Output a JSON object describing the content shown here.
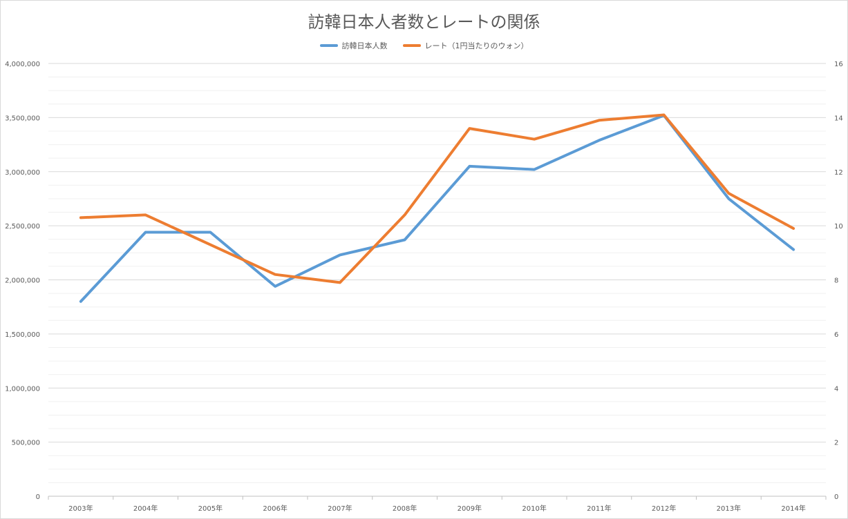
{
  "chart_data": {
    "type": "line",
    "title": "訪韓日本人者数とレートの関係",
    "categories": [
      "2003年",
      "2004年",
      "2005年",
      "2006年",
      "2007年",
      "2008年",
      "2009年",
      "2010年",
      "2011年",
      "2012年",
      "2013年",
      "2014年"
    ],
    "series": [
      {
        "name": "訪韓日本人数",
        "axis": "left",
        "color": "#5b9bd5",
        "values": [
          1800000,
          2440000,
          2440000,
          1940000,
          2230000,
          2370000,
          3050000,
          3020000,
          3290000,
          3520000,
          2750000,
          2280000
        ]
      },
      {
        "name": "レート（1円当たりのウォン）",
        "axis": "right",
        "color": "#ed7d31",
        "values": [
          10.3,
          10.4,
          9.3,
          8.2,
          7.9,
          10.4,
          13.6,
          13.2,
          13.9,
          14.1,
          11.2,
          9.9
        ]
      }
    ],
    "y_left": {
      "ylim": [
        0,
        4000000
      ],
      "ticks": [
        "0",
        "500,000",
        "1,000,000",
        "1,500,000",
        "2,000,000",
        "2,500,000",
        "3,000,000",
        "3,500,000",
        "4,000,000"
      ]
    },
    "y_right": {
      "ylim": [
        0,
        16
      ],
      "ticks": [
        "0",
        "2",
        "4",
        "6",
        "8",
        "10",
        "12",
        "14",
        "16"
      ]
    },
    "grid": true,
    "legend_position": "top"
  }
}
